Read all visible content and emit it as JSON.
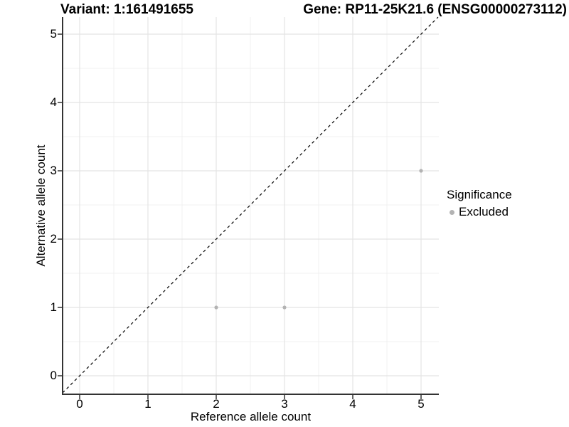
{
  "figure": {
    "background": "#ffffff"
  },
  "chart_data": {
    "type": "scatter",
    "title_left": "Variant: 1:161491655",
    "title_right": "Gene: RP11-25K21.6 (ENSG00000273112)",
    "xlabel": "Reference allele count",
    "ylabel": "Alternative allele count",
    "x_ticks": [
      0,
      1,
      2,
      3,
      4,
      5
    ],
    "y_ticks": [
      0,
      1,
      2,
      3,
      4,
      5
    ],
    "x_minor": [
      0.5,
      1.5,
      2.5,
      3.5,
      4.5
    ],
    "y_minor": [
      0.5,
      1.5,
      2.5,
      3.5,
      4.5
    ],
    "xlim": [
      -0.25,
      5.26
    ],
    "ylim": [
      -0.27,
      5.25
    ],
    "grid": "major+minor",
    "series": [
      {
        "name": "Excluded",
        "color": "#b3b3b3",
        "points": [
          {
            "x": 2,
            "y": 1
          },
          {
            "x": 3,
            "y": 1
          },
          {
            "x": 5,
            "y": 3
          }
        ]
      }
    ],
    "reference_line": {
      "type": "identity y = x",
      "style": "dashed",
      "color": "#000000"
    },
    "legend": {
      "position": "right",
      "title": "Significance",
      "items": [
        {
          "label": "Excluded",
          "color": "#b3b3b3"
        }
      ]
    },
    "colors": {
      "grid_major": "#e4e4e4",
      "grid_minor": "#f0f0f0",
      "axis": "#333333",
      "text": "#000000",
      "point": "#b3b3b3"
    }
  }
}
